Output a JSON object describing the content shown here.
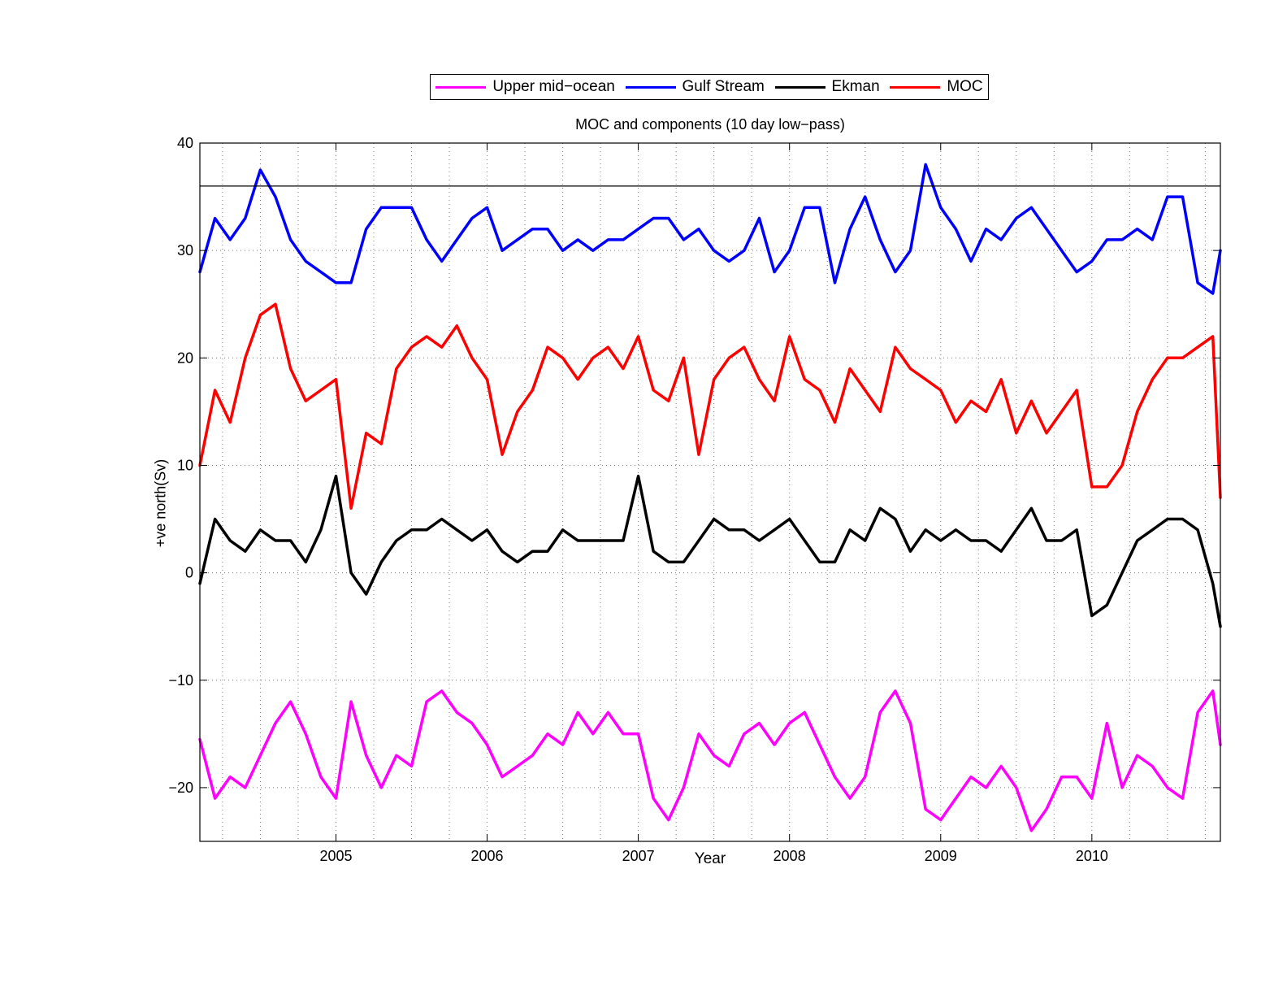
{
  "chart_data": {
    "type": "line",
    "title": "MOC and components (10 day low−pass)",
    "xlabel": "Year",
    "ylabel": "+ve north(Sv)",
    "xlim": [
      2004.1,
      2010.85
    ],
    "ylim": [
      -25,
      40
    ],
    "xticks": [
      2005,
      2006,
      2007,
      2008,
      2009,
      2010
    ],
    "xtick_labels": [
      "2005",
      "2006",
      "2007",
      "2008",
      "2009",
      "2010"
    ],
    "xminor_grid": [
      2004.25,
      2004.5,
      2004.75,
      2005.25,
      2005.5,
      2005.75,
      2006.25,
      2006.5,
      2006.75,
      2007.25,
      2007.5,
      2007.75,
      2008.25,
      2008.5,
      2008.75,
      2009.25,
      2009.5,
      2009.75,
      2010.25,
      2010.5,
      2010.75
    ],
    "yticks": [
      40,
      30,
      20,
      10,
      0,
      -10,
      -20
    ],
    "ytick_labels": [
      "40",
      "30",
      "20",
      "10",
      "0",
      "−10",
      "−20"
    ],
    "grid": "dotted",
    "reference_line": 36,
    "legend_position": "top-center",
    "legend": [
      {
        "label": "Upper mid−ocean",
        "color": "#ff00ff"
      },
      {
        "label": "Gulf Stream",
        "color": "#0000ff"
      },
      {
        "label": "Ekman",
        "color": "#000000"
      },
      {
        "label": "MOC",
        "color": "#ff0000"
      }
    ],
    "series": [
      {
        "name": "Upper mid−ocean",
        "color": "#ff00ff",
        "x": [
          2004.1,
          2004.2,
          2004.3,
          2004.4,
          2004.5,
          2004.6,
          2004.7,
          2004.8,
          2004.9,
          2005.0,
          2005.1,
          2005.2,
          2005.3,
          2005.4,
          2005.5,
          2005.6,
          2005.7,
          2005.8,
          2005.9,
          2006.0,
          2006.1,
          2006.2,
          2006.3,
          2006.4,
          2006.5,
          2006.6,
          2006.7,
          2006.8,
          2006.9,
          2007.0,
          2007.1,
          2007.2,
          2007.3,
          2007.4,
          2007.5,
          2007.6,
          2007.7,
          2007.8,
          2007.9,
          2008.0,
          2008.1,
          2008.2,
          2008.3,
          2008.4,
          2008.5,
          2008.6,
          2008.7,
          2008.8,
          2008.9,
          2009.0,
          2009.1,
          2009.2,
          2009.3,
          2009.4,
          2009.5,
          2009.6,
          2009.7,
          2009.8,
          2009.9,
          2010.0,
          2010.1,
          2010.2,
          2010.3,
          2010.4,
          2010.5,
          2010.6,
          2010.7,
          2010.8,
          2010.85
        ],
        "values": [
          -15.5,
          -21,
          -19,
          -20,
          -17,
          -14,
          -12,
          -15,
          -19,
          -21,
          -12,
          -17,
          -20,
          -17,
          -18,
          -12,
          -11,
          -13,
          -14,
          -16,
          -19,
          -18,
          -17,
          -15,
          -16,
          -13,
          -15,
          -13,
          -15,
          -15,
          -21,
          -23,
          -20,
          -15,
          -17,
          -18,
          -15,
          -14,
          -16,
          -14,
          -13,
          -16,
          -19,
          -21,
          -19,
          -13,
          -11,
          -14,
          -22,
          -23,
          -21,
          -19,
          -20,
          -18,
          -20,
          -24,
          -22,
          -19,
          -19,
          -21,
          -14,
          -20,
          -17,
          -18,
          -20,
          -21,
          -13,
          -11,
          -16
        ]
      },
      {
        "name": "Gulf Stream",
        "color": "#0000ff",
        "x": [
          2004.1,
          2004.2,
          2004.3,
          2004.4,
          2004.5,
          2004.6,
          2004.7,
          2004.8,
          2004.9,
          2005.0,
          2005.1,
          2005.2,
          2005.3,
          2005.4,
          2005.5,
          2005.6,
          2005.7,
          2005.8,
          2005.9,
          2006.0,
          2006.1,
          2006.2,
          2006.3,
          2006.4,
          2006.5,
          2006.6,
          2006.7,
          2006.8,
          2006.9,
          2007.0,
          2007.1,
          2007.2,
          2007.3,
          2007.4,
          2007.5,
          2007.6,
          2007.7,
          2007.8,
          2007.9,
          2008.0,
          2008.1,
          2008.2,
          2008.3,
          2008.4,
          2008.5,
          2008.6,
          2008.7,
          2008.8,
          2008.9,
          2009.0,
          2009.1,
          2009.2,
          2009.3,
          2009.4,
          2009.5,
          2009.6,
          2009.7,
          2009.8,
          2009.9,
          2010.0,
          2010.1,
          2010.2,
          2010.3,
          2010.4,
          2010.5,
          2010.6,
          2010.7,
          2010.8,
          2010.85
        ],
        "values": [
          28,
          33,
          31,
          33,
          37.5,
          35,
          31,
          29,
          28,
          27,
          27,
          32,
          34,
          34,
          34,
          31,
          29,
          31,
          33,
          34,
          30,
          31,
          32,
          32,
          30,
          31,
          30,
          31,
          31,
          32,
          33,
          33,
          31,
          32,
          30,
          29,
          30,
          33,
          28,
          30,
          34,
          34,
          27,
          32,
          35,
          31,
          28,
          30,
          38,
          34,
          32,
          29,
          32,
          31,
          33,
          34,
          32,
          30,
          28,
          29,
          31,
          31,
          32,
          31,
          35,
          35,
          27,
          26,
          30
        ]
      },
      {
        "name": "Ekman",
        "color": "#000000",
        "x": [
          2004.1,
          2004.2,
          2004.3,
          2004.4,
          2004.5,
          2004.6,
          2004.7,
          2004.8,
          2004.9,
          2005.0,
          2005.1,
          2005.2,
          2005.3,
          2005.4,
          2005.5,
          2005.6,
          2005.7,
          2005.8,
          2005.9,
          2006.0,
          2006.1,
          2006.2,
          2006.3,
          2006.4,
          2006.5,
          2006.6,
          2006.7,
          2006.8,
          2006.9,
          2007.0,
          2007.1,
          2007.2,
          2007.3,
          2007.4,
          2007.5,
          2007.6,
          2007.7,
          2007.8,
          2007.9,
          2008.0,
          2008.1,
          2008.2,
          2008.3,
          2008.4,
          2008.5,
          2008.6,
          2008.7,
          2008.8,
          2008.9,
          2009.0,
          2009.1,
          2009.2,
          2009.3,
          2009.4,
          2009.5,
          2009.6,
          2009.7,
          2009.8,
          2009.9,
          2010.0,
          2010.1,
          2010.2,
          2010.3,
          2010.4,
          2010.5,
          2010.6,
          2010.7,
          2010.8,
          2010.85
        ],
        "values": [
          -1,
          5,
          3,
          2,
          4,
          3,
          3,
          1,
          4,
          9,
          0,
          -2,
          1,
          3,
          4,
          4,
          5,
          4,
          3,
          4,
          2,
          1,
          2,
          2,
          4,
          3,
          3,
          3,
          3,
          9,
          2,
          1,
          1,
          3,
          5,
          4,
          4,
          3,
          4,
          5,
          3,
          1,
          1,
          4,
          3,
          6,
          5,
          2,
          4,
          3,
          4,
          3,
          3,
          2,
          4,
          6,
          3,
          3,
          4,
          -4,
          -3,
          0,
          3,
          4,
          5,
          5,
          4,
          -1,
          -5
        ]
      },
      {
        "name": "MOC",
        "color": "#ff0000",
        "x": [
          2004.1,
          2004.2,
          2004.3,
          2004.4,
          2004.5,
          2004.6,
          2004.7,
          2004.8,
          2004.9,
          2005.0,
          2005.1,
          2005.2,
          2005.3,
          2005.4,
          2005.5,
          2005.6,
          2005.7,
          2005.8,
          2005.9,
          2006.0,
          2006.1,
          2006.2,
          2006.3,
          2006.4,
          2006.5,
          2006.6,
          2006.7,
          2006.8,
          2006.9,
          2007.0,
          2007.1,
          2007.2,
          2007.3,
          2007.4,
          2007.5,
          2007.6,
          2007.7,
          2007.8,
          2007.9,
          2008.0,
          2008.1,
          2008.2,
          2008.3,
          2008.4,
          2008.5,
          2008.6,
          2008.7,
          2008.8,
          2008.9,
          2009.0,
          2009.1,
          2009.2,
          2009.3,
          2009.4,
          2009.5,
          2009.6,
          2009.7,
          2009.8,
          2009.9,
          2010.0,
          2010.1,
          2010.2,
          2010.3,
          2010.4,
          2010.5,
          2010.6,
          2010.7,
          2010.8,
          2010.85
        ],
        "values": [
          10,
          17,
          14,
          20,
          24,
          25,
          19,
          16,
          17,
          18,
          6,
          13,
          12,
          19,
          21,
          22,
          21,
          23,
          20,
          18,
          11,
          15,
          17,
          21,
          20,
          18,
          20,
          21,
          19,
          22,
          17,
          16,
          20,
          11,
          18,
          20,
          21,
          18,
          16,
          22,
          18,
          17,
          14,
          19,
          17,
          15,
          21,
          19,
          18,
          17,
          14,
          16,
          15,
          18,
          13,
          16,
          13,
          15,
          17,
          8,
          8,
          10,
          15,
          18,
          20,
          20,
          21,
          22,
          7
        ]
      }
    ]
  }
}
